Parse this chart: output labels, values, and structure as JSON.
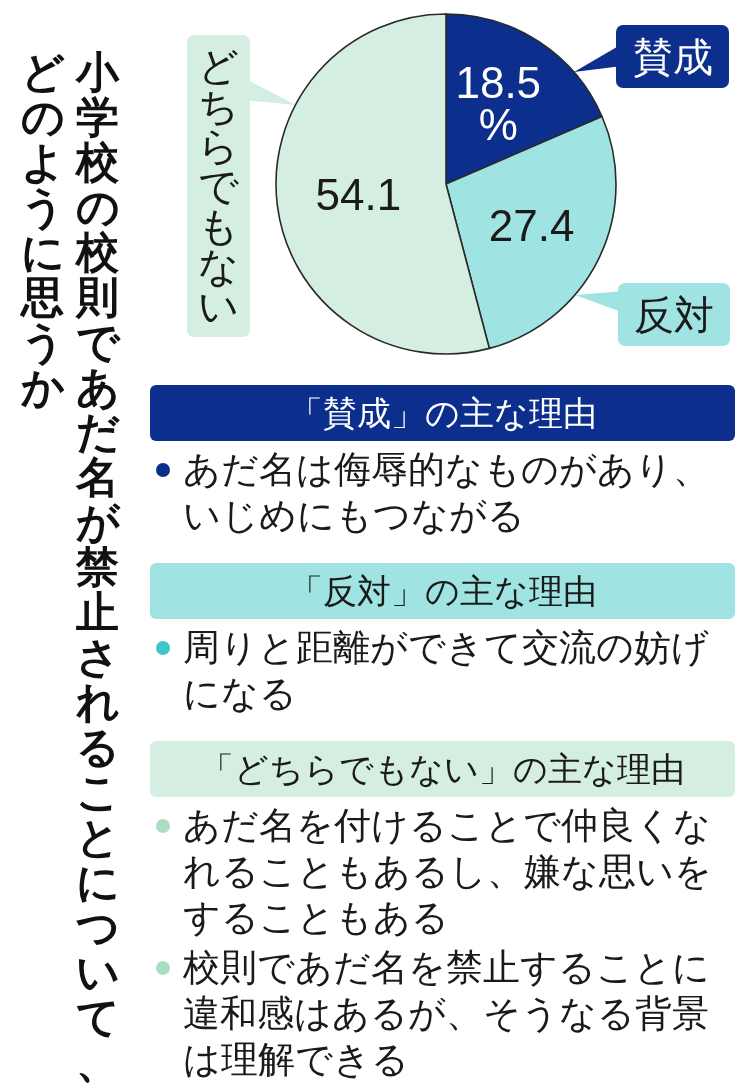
{
  "chart_data": {
    "type": "pie",
    "title": "小学校の校則であだ名が禁止されることについて、どのように思うか",
    "categories": [
      "賛成",
      "反対",
      "どちらでもない"
    ],
    "values": [
      18.5,
      27.4,
      54.1
    ],
    "colors": [
      "#0c2e8c",
      "#a0e3e3",
      "#d5eee2"
    ],
    "value_labels": [
      "18.5%",
      "27.4",
      "54.1"
    ],
    "legend": "right",
    "annotations": [
      "「賛成」の主な理由",
      "あだ名は侮辱的なものがあり、いじめにもつながる",
      "「反対」の主な理由",
      "周りと距離ができて交流の妨げになる",
      "「どちらでもない」の主な理由",
      "あだ名を付けることで仲良くなれることもあるし、嫌な思いをすることもある",
      "校則であだ名を禁止することに違和感はあるが、そうなる背景は理解できる"
    ]
  }
}
